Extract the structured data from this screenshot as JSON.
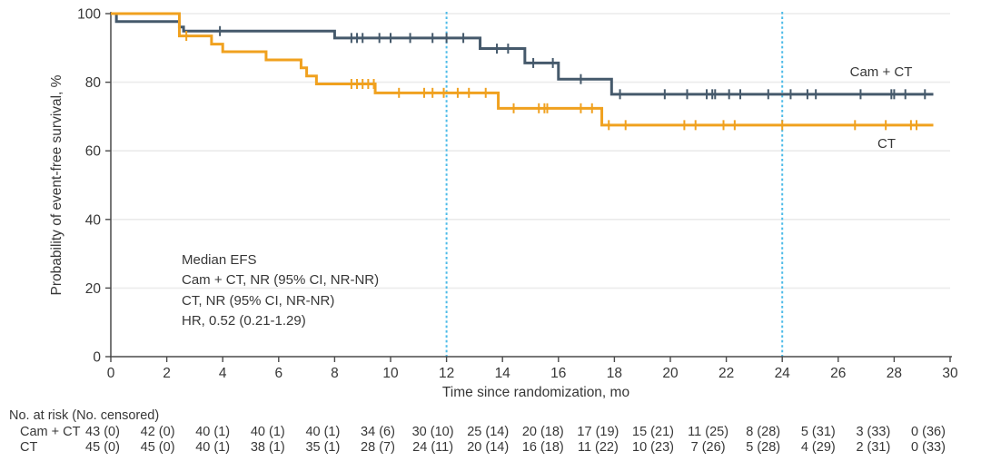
{
  "figure": {
    "y_axis_title": "Probability of event-free survival, %",
    "x_axis_title": "Time since randomization, mo",
    "curve_label_cam_ct": "Cam + CT",
    "curve_label_ct": "CT"
  },
  "annotation": {
    "lines": [
      "Median EFS",
      "Cam + CT, NR (95% CI, NR-NR)",
      "CT, NR (95% CI, NR-NR)",
      "HR, 0.52 (0.21-1.29)"
    ]
  },
  "risk_table": {
    "header": "No. at risk (No. censored)",
    "rows": [
      {
        "label": "Cam + CT",
        "values": [
          "43 (0)",
          "42 (0)",
          "40 (1)",
          "40 (1)",
          "40 (1)",
          "34 (6)",
          "30 (10)",
          "25 (14)",
          "20 (18)",
          "17 (19)",
          "15 (21)",
          "11 (25)",
          "8 (28)",
          "5 (31)",
          "3 (33)",
          "0 (36)"
        ]
      },
      {
        "label": "CT",
        "values": [
          "45 (0)",
          "45 (0)",
          "40 (1)",
          "38 (1)",
          "35 (1)",
          "28 (7)",
          "24 (11)",
          "20 (14)",
          "16 (18)",
          "11 (22)",
          "10 (23)",
          "7 (26)",
          "5 (28)",
          "4 (29)",
          "2 (31)",
          "0 (33)"
        ]
      }
    ]
  },
  "colors": {
    "cam_ct": "#45596b",
    "ct": "#f0a11f",
    "reference_line": "#4cbbe8",
    "text": "#373737",
    "grid": "#ebebeb",
    "axis": "#4a4a4a"
  },
  "chart_data": {
    "type": "line",
    "subtype": "kaplan-meier-step",
    "title": "",
    "xlabel": "Time since randomization, mo",
    "ylabel": "Probability of event-free survival, %",
    "xlim": [
      0,
      30
    ],
    "ylim": [
      0,
      100
    ],
    "x_ticks": [
      0,
      2,
      4,
      6,
      8,
      10,
      12,
      14,
      16,
      18,
      20,
      22,
      24,
      26,
      28,
      30
    ],
    "y_ticks": [
      0,
      20,
      40,
      60,
      80,
      100
    ],
    "grid": "horizontal-light",
    "reference_lines_x": [
      12,
      24
    ],
    "legend_position": "end-of-line-labels",
    "series": [
      {
        "name": "Cam + CT",
        "color": "#45596b",
        "steps": [
          [
            0,
            100
          ],
          [
            0.2,
            97.7
          ],
          [
            2.45,
            96.1
          ],
          [
            2.6,
            94.9
          ],
          [
            8.0,
            92.9
          ],
          [
            13.2,
            89.8
          ],
          [
            14.8,
            85.6
          ],
          [
            16.0,
            80.9
          ],
          [
            17.9,
            76.5
          ]
        ],
        "end_x": 29.4,
        "censor_marks": [
          3.9,
          8.6,
          8.8,
          9.0,
          9.6,
          10.0,
          10.7,
          11.5,
          12.0,
          12.6,
          13.8,
          14.2,
          15.1,
          15.8,
          16.8,
          18.2,
          19.8,
          20.6,
          21.3,
          21.5,
          21.6,
          22.1,
          22.5,
          23.5,
          24.3,
          24.9,
          25.2,
          26.8,
          27.9,
          28.0,
          28.4,
          29.1
        ]
      },
      {
        "name": "CT",
        "color": "#f0a11f",
        "steps": [
          [
            0,
            100
          ],
          [
            2.45,
            93.5
          ],
          [
            3.6,
            91.1
          ],
          [
            4.0,
            88.9
          ],
          [
            5.55,
            86.5
          ],
          [
            6.8,
            84.2
          ],
          [
            7.0,
            81.8
          ],
          [
            7.35,
            79.5
          ],
          [
            9.45,
            76.9
          ],
          [
            13.85,
            72.4
          ],
          [
            17.55,
            67.5
          ]
        ],
        "end_x": 29.4,
        "censor_marks": [
          2.7,
          8.6,
          8.8,
          9.0,
          9.2,
          9.4,
          10.3,
          11.2,
          11.5,
          11.9,
          12.4,
          12.8,
          13.4,
          14.4,
          15.3,
          15.5,
          15.6,
          16.8,
          17.2,
          17.8,
          18.4,
          20.5,
          20.9,
          21.9,
          22.3,
          24.0,
          26.6,
          27.7,
          28.6,
          28.8
        ]
      }
    ],
    "annotation_lines": [
      "Median EFS",
      "Cam + CT, NR (95% CI, NR-NR)",
      "CT, NR (95% CI, NR-NR)",
      "HR, 0.52 (0.21-1.29)"
    ],
    "at_risk_table": {
      "header": "No. at risk (No. censored)",
      "time_points": [
        0,
        2,
        4,
        6,
        8,
        10,
        12,
        14,
        16,
        18,
        20,
        22,
        24,
        26,
        28,
        30
      ],
      "groups": [
        {
          "name": "Cam + CT",
          "at_risk": [
            43,
            42,
            40,
            40,
            40,
            34,
            30,
            25,
            20,
            17,
            15,
            11,
            8,
            5,
            3,
            0
          ],
          "censored": [
            0,
            0,
            1,
            1,
            1,
            6,
            10,
            14,
            18,
            19,
            21,
            25,
            28,
            31,
            33,
            36
          ]
        },
        {
          "name": "CT",
          "at_risk": [
            45,
            45,
            40,
            38,
            35,
            28,
            24,
            20,
            16,
            11,
            10,
            7,
            5,
            4,
            2,
            0
          ],
          "censored": [
            0,
            0,
            1,
            1,
            1,
            7,
            11,
            14,
            18,
            22,
            23,
            26,
            28,
            29,
            31,
            33
          ]
        }
      ]
    }
  }
}
